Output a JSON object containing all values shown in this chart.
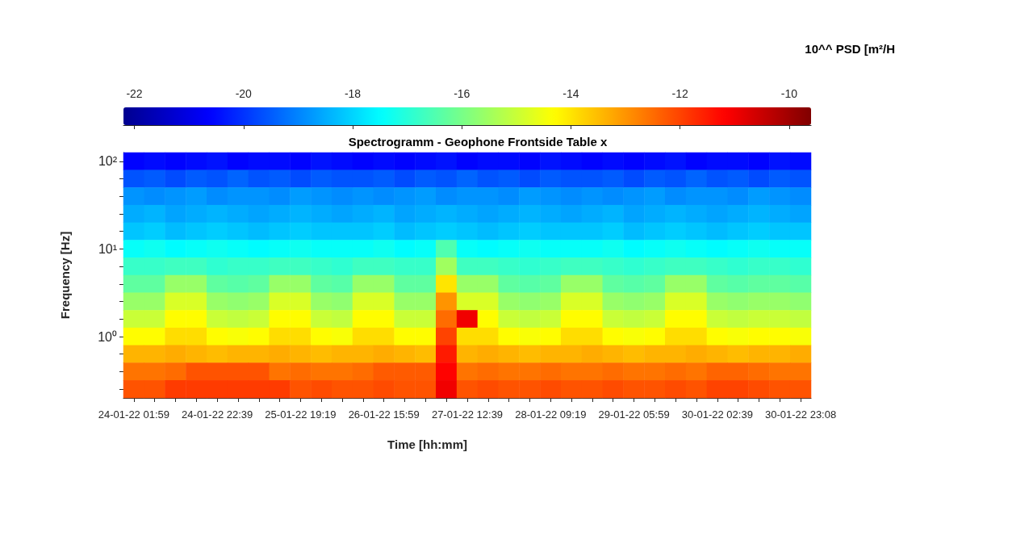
{
  "chart_data": {
    "type": "heatmap",
    "title": "Spectrogramm - Geophone Frontside Table x",
    "xlabel": "Time [hh:mm]",
    "ylabel": "Frequency [Hz]",
    "clabel": "10^^ PSD [m²/H",
    "categories": [
      "24-01-22 01:59",
      null,
      null,
      null,
      "24-01-22 22:39",
      null,
      null,
      null,
      "25-01-22 19:19",
      null,
      null,
      null,
      "26-01-22 15:59",
      null,
      null,
      null,
      "27-01-22 12:39",
      null,
      null,
      null,
      "28-01-22 09:19",
      null,
      null,
      null,
      "29-01-22 05:59",
      null,
      null,
      null,
      "30-01-22 02:39",
      null,
      null,
      null,
      "30-01-22 23:08"
    ],
    "y_categories": [
      "10²",
      null,
      null,
      null,
      null,
      "10¹",
      null,
      null,
      null,
      null,
      "10⁰",
      null,
      null,
      null
    ],
    "cells": [
      [
        -20.6,
        -20.5,
        -20.6,
        -20.5,
        -20.4,
        -20.6,
        -20.5,
        -20.5,
        -20.6,
        -20.4,
        -20.5,
        -20.6,
        -20.5,
        -20.6,
        -20.5,
        -20.4,
        -20.6,
        -20.5,
        -20.5,
        -20.6,
        -20.4,
        -20.5,
        -20.6,
        -20.5,
        -20.6,
        -20.5,
        -20.4,
        -20.6,
        -20.5,
        -20.5,
        -20.6,
        -20.4,
        -20.5
      ],
      [
        -19.6,
        -19.5,
        -19.7,
        -19.5,
        -19.6,
        -19.4,
        -19.6,
        -19.5,
        -19.7,
        -19.5,
        -19.6,
        -19.6,
        -19.5,
        -19.7,
        -19.5,
        -19.6,
        -19.4,
        -19.6,
        -19.5,
        -19.7,
        -19.5,
        -19.6,
        -19.6,
        -19.5,
        -19.7,
        -19.5,
        -19.6,
        -19.4,
        -19.6,
        -19.5,
        -19.7,
        -19.5,
        -19.6
      ],
      [
        -18.8,
        -18.9,
        -18.8,
        -18.7,
        -18.9,
        -18.8,
        -18.8,
        -18.9,
        -18.7,
        -18.8,
        -18.9,
        -18.8,
        -18.9,
        -18.8,
        -18.7,
        -18.9,
        -18.8,
        -18.8,
        -18.9,
        -18.7,
        -18.8,
        -18.9,
        -18.8,
        -18.9,
        -18.8,
        -18.7,
        -18.9,
        -18.8,
        -18.8,
        -18.9,
        -18.7,
        -18.8,
        -18.9
      ],
      [
        -18.5,
        -18.4,
        -18.6,
        -18.5,
        -18.4,
        -18.5,
        -18.6,
        -18.5,
        -18.4,
        -18.5,
        -18.6,
        -18.5,
        -18.4,
        -18.6,
        -18.5,
        -18.4,
        -18.5,
        -18.6,
        -18.5,
        -18.4,
        -18.5,
        -18.6,
        -18.5,
        -18.4,
        -18.6,
        -18.5,
        -18.4,
        -18.5,
        -18.6,
        -18.5,
        -18.4,
        -18.5,
        -18.6
      ],
      [
        -18.2,
        -18.1,
        -18.3,
        -18.2,
        -18.1,
        -18.2,
        -18.3,
        -18.2,
        -18.1,
        -18.2,
        -18.2,
        -18.2,
        -18.1,
        -18.3,
        -18.2,
        -18.1,
        -18.2,
        -18.3,
        -18.2,
        -18.1,
        -18.2,
        -18.2,
        -18.2,
        -18.1,
        -18.3,
        -18.2,
        -18.1,
        -18.2,
        -18.3,
        -18.2,
        -18.1,
        -18.2,
        -18.2
      ],
      [
        -17.4,
        -17.3,
        -17.5,
        -17.4,
        -17.3,
        -17.4,
        -17.5,
        -17.4,
        -17.3,
        -17.4,
        -17.4,
        -17.4,
        -17.3,
        -17.5,
        -17.4,
        -16.5,
        -17.4,
        -17.5,
        -17.4,
        -17.3,
        -17.4,
        -17.4,
        -17.4,
        -17.3,
        -17.5,
        -17.4,
        -17.3,
        -17.4,
        -17.5,
        -17.4,
        -17.3,
        -17.4,
        -17.4
      ],
      [
        -16.8,
        -16.8,
        -16.7,
        -16.7,
        -16.9,
        -16.8,
        -16.8,
        -16.7,
        -16.7,
        -16.8,
        -16.9,
        -16.7,
        -16.7,
        -16.8,
        -16.8,
        -15.5,
        -16.7,
        -16.7,
        -16.8,
        -16.9,
        -16.8,
        -16.7,
        -16.7,
        -16.8,
        -16.9,
        -16.8,
        -16.7,
        -16.7,
        -16.8,
        -16.9,
        -16.8,
        -16.8,
        -16.9
      ],
      [
        -16.3,
        -16.3,
        -15.6,
        -15.6,
        -16.3,
        -16.4,
        -16.3,
        -15.6,
        -15.6,
        -16.3,
        -16.4,
        -15.6,
        -15.6,
        -16.3,
        -16.3,
        -14.0,
        -15.6,
        -15.6,
        -16.3,
        -16.4,
        -16.3,
        -15.6,
        -15.6,
        -16.3,
        -16.4,
        -16.3,
        -15.6,
        -15.6,
        -16.3,
        -16.4,
        -16.3,
        -16.3,
        -16.4
      ],
      [
        -15.6,
        -15.6,
        -14.8,
        -14.8,
        -15.6,
        -15.7,
        -15.6,
        -14.8,
        -14.8,
        -15.6,
        -15.7,
        -14.8,
        -14.8,
        -15.6,
        -15.6,
        -13.0,
        -14.8,
        -14.8,
        -15.6,
        -15.7,
        -15.6,
        -14.8,
        -14.8,
        -15.6,
        -15.7,
        -15.6,
        -14.8,
        -14.8,
        -15.6,
        -15.7,
        -15.6,
        -15.6,
        -15.7
      ],
      [
        -15.0,
        -15.0,
        -14.3,
        -14.3,
        -15.0,
        -15.1,
        -15.0,
        -14.3,
        -14.3,
        -15.0,
        -15.1,
        -14.3,
        -14.3,
        -15.0,
        -15.0,
        -12.5,
        -11.0,
        -14.3,
        -15.0,
        -15.1,
        -15.0,
        -14.3,
        -14.3,
        -15.0,
        -15.1,
        -15.0,
        -14.3,
        -14.3,
        -15.0,
        -15.1,
        -15.0,
        -15.0,
        -15.1
      ],
      [
        -14.3,
        -14.3,
        -13.9,
        -13.9,
        -14.3,
        -14.4,
        -14.3,
        -13.9,
        -13.9,
        -14.3,
        -14.4,
        -13.9,
        -13.9,
        -14.3,
        -14.3,
        -12.0,
        -13.9,
        -13.9,
        -14.3,
        -14.4,
        -14.3,
        -13.9,
        -13.9,
        -14.3,
        -14.4,
        -14.3,
        -13.9,
        -13.9,
        -14.3,
        -14.4,
        -14.3,
        -14.3,
        -14.4
      ],
      [
        -13.4,
        -13.4,
        -13.3,
        -13.4,
        -13.5,
        -13.4,
        -13.4,
        -13.3,
        -13.4,
        -13.5,
        -13.4,
        -13.4,
        -13.3,
        -13.4,
        -13.5,
        -11.5,
        -13.4,
        -13.3,
        -13.4,
        -13.5,
        -13.4,
        -13.4,
        -13.3,
        -13.4,
        -13.5,
        -13.4,
        -13.4,
        -13.3,
        -13.4,
        -13.5,
        -13.4,
        -13.4,
        -13.3
      ],
      [
        -12.6,
        -12.6,
        -12.5,
        -12.2,
        -12.2,
        -12.2,
        -12.2,
        -12.6,
        -12.5,
        -12.6,
        -12.6,
        -12.5,
        -12.3,
        -12.3,
        -12.3,
        -11.2,
        -12.6,
        -12.5,
        -12.6,
        -12.6,
        -12.5,
        -12.6,
        -12.6,
        -12.5,
        -12.6,
        -12.6,
        -12.5,
        -12.6,
        -12.4,
        -12.4,
        -12.5,
        -12.6,
        -12.6
      ],
      [
        -12.2,
        -12.2,
        -11.9,
        -11.9,
        -11.9,
        -11.9,
        -11.9,
        -11.9,
        -12.2,
        -12.1,
        -12.2,
        -12.2,
        -12.1,
        -12.2,
        -12.2,
        -11.0,
        -12.2,
        -12.1,
        -12.2,
        -12.2,
        -12.1,
        -12.2,
        -12.2,
        -12.1,
        -12.2,
        -12.2,
        -12.1,
        -12.2,
        -12.0,
        -12.0,
        -12.1,
        -12.2,
        -12.2
      ]
    ],
    "clim": [
      -22.2,
      -9.6
    ],
    "cticks": [
      -22,
      -20,
      -18,
      -16,
      -14,
      -12,
      -10
    ]
  }
}
